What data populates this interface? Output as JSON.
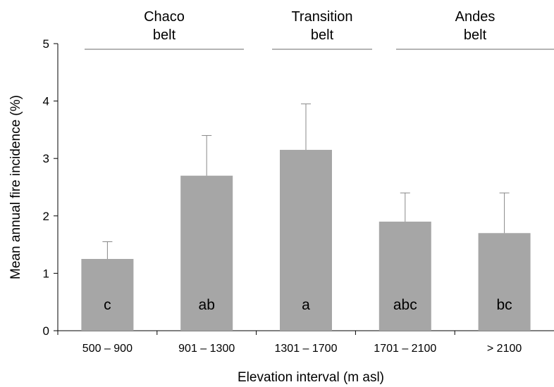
{
  "chart_data": {
    "type": "bar",
    "categories": [
      "500 – 900",
      "901 – 1300",
      "1301 – 1700",
      "1701 – 2100",
      "> 2100"
    ],
    "values": [
      1.25,
      2.7,
      3.15,
      1.9,
      1.7
    ],
    "error_upper": [
      1.55,
      3.4,
      3.95,
      2.4,
      2.4
    ],
    "letters": [
      "c",
      "ab",
      "a",
      "abc",
      "bc"
    ],
    "ylabel": "Mean annual fire incidence (%)",
    "xlabel": "Elevation interval (m asl)",
    "ylim": [
      0,
      5
    ],
    "yticks": [
      "0",
      "1",
      "2",
      "3",
      "4",
      "5"
    ],
    "grid": false,
    "bar_color": "#a6a6a6",
    "groups": [
      {
        "line1": "Chaco",
        "line2": "belt",
        "from": 0,
        "to": 1
      },
      {
        "line1": "Transition",
        "line2": "belt",
        "from": 2,
        "to": 2
      },
      {
        "line1": "Andes",
        "line2": "belt",
        "from": 3,
        "to": 4
      }
    ]
  }
}
